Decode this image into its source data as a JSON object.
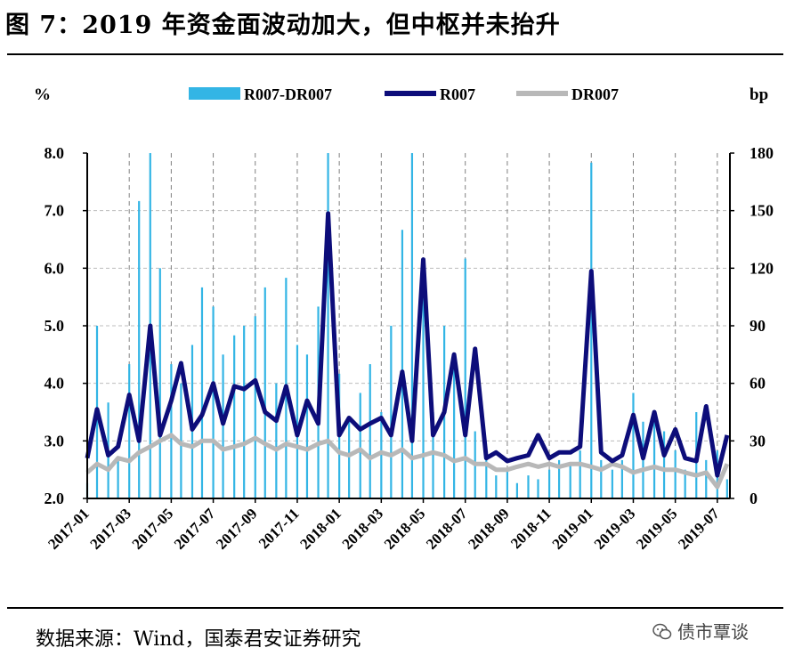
{
  "title": "图 7：2019 年资金面波动加大，但中枢并未抬升",
  "source": "数据来源：Wind，国泰君安证券研究",
  "watermark": {
    "text": "债市覃谈",
    "icon": "wechat-icon"
  },
  "chart_data": {
    "type": "line",
    "left_axis_label": "%",
    "right_axis_label": "bp",
    "ylim_left": [
      2.0,
      8.0
    ],
    "yticks_left": [
      "2.0",
      "3.0",
      "4.0",
      "5.0",
      "6.0",
      "7.0",
      "8.0"
    ],
    "ylim_right": [
      0,
      180
    ],
    "yticks_right": [
      "0",
      "30",
      "60",
      "90",
      "120",
      "150",
      "180"
    ],
    "x_ticks": [
      "2017-01",
      "2017-03",
      "2017-05",
      "2017-07",
      "2017-09",
      "2017-11",
      "2018-01",
      "2018-03",
      "2018-05",
      "2018-07",
      "2018-09",
      "2018-11",
      "2019-01",
      "2019-03",
      "2019-05",
      "2019-07"
    ],
    "grid": "dashed",
    "legend_position": "top",
    "series": [
      {
        "name": "R007-DR007",
        "axis": "right",
        "style": "bar",
        "color": "#33b5e5",
        "x": [
          "2017-01",
          "2017-01-15",
          "2017-02",
          "2017-02-15",
          "2017-03",
          "2017-03-15",
          "2017-04",
          "2017-04-15",
          "2017-05",
          "2017-05-15",
          "2017-06",
          "2017-06-15",
          "2017-07",
          "2017-07-15",
          "2017-08",
          "2017-08-15",
          "2017-09",
          "2017-09-15",
          "2017-10",
          "2017-10-15",
          "2017-11",
          "2017-11-15",
          "2017-12",
          "2017-12-15",
          "2018-01",
          "2018-01-15",
          "2018-02",
          "2018-02-15",
          "2018-03",
          "2018-03-15",
          "2018-04",
          "2018-04-15",
          "2018-05",
          "2018-05-15",
          "2018-06",
          "2018-06-15",
          "2018-07",
          "2018-07-15",
          "2018-08",
          "2018-08-15",
          "2018-09",
          "2018-09-15",
          "2018-10",
          "2018-10-15",
          "2018-11",
          "2018-11-15",
          "2018-12",
          "2018-12-15",
          "2019-01",
          "2019-01-15",
          "2019-02",
          "2019-02-15",
          "2019-03",
          "2019-03-15",
          "2019-04",
          "2019-04-15",
          "2019-05",
          "2019-05-15",
          "2019-06",
          "2019-06-15",
          "2019-07",
          "2019-07-15"
        ],
        "values": [
          8,
          90,
          50,
          20,
          70,
          155,
          180,
          120,
          70,
          60,
          80,
          110,
          100,
          75,
          85,
          90,
          95,
          110,
          60,
          115,
          80,
          75,
          100,
          180,
          65,
          40,
          55,
          70,
          45,
          90,
          140,
          180,
          120,
          45,
          90,
          70,
          125,
          35,
          20,
          12,
          15,
          8,
          12,
          10,
          15,
          20,
          18,
          25,
          175,
          20,
          15,
          20,
          55,
          40,
          45,
          35,
          25,
          15,
          45,
          20,
          25,
          10
        ]
      },
      {
        "name": "R007",
        "axis": "left",
        "color": "#0d0d7a",
        "x": [
          "2017-01",
          "2017-01-15",
          "2017-02",
          "2017-02-15",
          "2017-03",
          "2017-03-15",
          "2017-04",
          "2017-04-15",
          "2017-05",
          "2017-05-15",
          "2017-06",
          "2017-06-15",
          "2017-07",
          "2017-07-15",
          "2017-08",
          "2017-08-15",
          "2017-09",
          "2017-09-15",
          "2017-10",
          "2017-10-15",
          "2017-11",
          "2017-11-15",
          "2017-12",
          "2017-12-15",
          "2018-01",
          "2018-01-15",
          "2018-02",
          "2018-02-15",
          "2018-03",
          "2018-03-15",
          "2018-04",
          "2018-04-15",
          "2018-05",
          "2018-05-15",
          "2018-06",
          "2018-06-15",
          "2018-07",
          "2018-07-15",
          "2018-08",
          "2018-08-15",
          "2018-09",
          "2018-09-15",
          "2018-10",
          "2018-10-15",
          "2018-11",
          "2018-11-15",
          "2018-12",
          "2018-12-15",
          "2019-01",
          "2019-01-15",
          "2019-02",
          "2019-02-15",
          "2019-03",
          "2019-03-15",
          "2019-04",
          "2019-04-15",
          "2019-05",
          "2019-05-15",
          "2019-06",
          "2019-06-15",
          "2019-07",
          "2019-07-15"
        ],
        "values": [
          2.7,
          3.55,
          2.75,
          2.9,
          3.8,
          3.0,
          5.0,
          3.1,
          3.7,
          4.35,
          3.2,
          3.45,
          4.0,
          3.3,
          3.95,
          3.9,
          4.05,
          3.5,
          3.35,
          3.95,
          3.1,
          3.7,
          3.3,
          6.95,
          3.1,
          3.4,
          3.2,
          3.3,
          3.4,
          3.1,
          4.2,
          3.0,
          6.15,
          3.1,
          3.5,
          4.5,
          3.1,
          4.6,
          2.7,
          2.8,
          2.65,
          2.7,
          2.75,
          3.1,
          2.7,
          2.8,
          2.8,
          2.9,
          5.95,
          2.8,
          2.65,
          2.75,
          3.45,
          2.7,
          3.5,
          2.75,
          3.2,
          2.7,
          2.65,
          3.6,
          2.4,
          3.1
        ]
      },
      {
        "name": "DR007",
        "axis": "left",
        "color": "#b8b8b8",
        "x": [
          "2017-01",
          "2017-01-15",
          "2017-02",
          "2017-02-15",
          "2017-03",
          "2017-03-15",
          "2017-04",
          "2017-04-15",
          "2017-05",
          "2017-05-15",
          "2017-06",
          "2017-06-15",
          "2017-07",
          "2017-07-15",
          "2017-08",
          "2017-08-15",
          "2017-09",
          "2017-09-15",
          "2017-10",
          "2017-10-15",
          "2017-11",
          "2017-11-15",
          "2017-12",
          "2017-12-15",
          "2018-01",
          "2018-01-15",
          "2018-02",
          "2018-02-15",
          "2018-03",
          "2018-03-15",
          "2018-04",
          "2018-04-15",
          "2018-05",
          "2018-05-15",
          "2018-06",
          "2018-06-15",
          "2018-07",
          "2018-07-15",
          "2018-08",
          "2018-08-15",
          "2018-09",
          "2018-09-15",
          "2018-10",
          "2018-10-15",
          "2018-11",
          "2018-11-15",
          "2018-12",
          "2018-12-15",
          "2019-01",
          "2019-01-15",
          "2019-02",
          "2019-02-15",
          "2019-03",
          "2019-03-15",
          "2019-04",
          "2019-04-15",
          "2019-05",
          "2019-05-15",
          "2019-06",
          "2019-06-15",
          "2019-07",
          "2019-07-15"
        ],
        "values": [
          2.45,
          2.6,
          2.5,
          2.7,
          2.65,
          2.8,
          2.9,
          3.0,
          3.1,
          2.95,
          2.9,
          3.0,
          3.0,
          2.85,
          2.9,
          2.95,
          3.05,
          2.95,
          2.85,
          2.95,
          2.9,
          2.85,
          2.95,
          3.0,
          2.8,
          2.75,
          2.85,
          2.7,
          2.8,
          2.75,
          2.85,
          2.7,
          2.75,
          2.8,
          2.75,
          2.65,
          2.7,
          2.6,
          2.6,
          2.5,
          2.5,
          2.55,
          2.6,
          2.55,
          2.6,
          2.55,
          2.6,
          2.6,
          2.55,
          2.5,
          2.6,
          2.55,
          2.45,
          2.5,
          2.55,
          2.5,
          2.5,
          2.45,
          2.4,
          2.45,
          2.2,
          2.6
        ]
      }
    ]
  }
}
